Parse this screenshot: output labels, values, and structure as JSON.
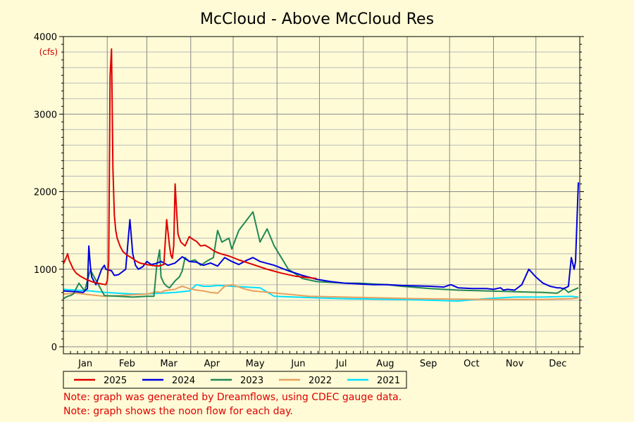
{
  "chart_data": {
    "type": "line",
    "title": "McCloud - Above McCloud Res",
    "ylabel": "(cfs)",
    "xlabel": "",
    "ylim": [
      0,
      4000
    ],
    "yticks": [
      0,
      1000,
      2000,
      3000,
      4000
    ],
    "y_tick_labels": [
      "0",
      "1000",
      "2000",
      "3000",
      "4000"
    ],
    "xlim": [
      1,
      366
    ],
    "x_unit": "day of year",
    "month_labels": [
      "Jan",
      "Feb",
      "Mar",
      "Apr",
      "May",
      "Jun",
      "Jul",
      "Aug",
      "Sep",
      "Oct",
      "Nov",
      "Dec"
    ],
    "grid": true,
    "legend_placement": "bottom",
    "series": [
      {
        "name": "2025",
        "color": "#e00000",
        "x": [
          1,
          3,
          4,
          5,
          8,
          10,
          13,
          17,
          21,
          25,
          28,
          31,
          32,
          33,
          34,
          35,
          36,
          37,
          38,
          39,
          41,
          43,
          46,
          49,
          52,
          55,
          60,
          65,
          68,
          70,
          72,
          74,
          76,
          77,
          78,
          79,
          80,
          81,
          82,
          84,
          87,
          90,
          93,
          95,
          98,
          101,
          104,
          108,
          112,
          118,
          125,
          135,
          145,
          155,
          165,
          175,
          180
        ],
        "values": [
          1070,
          1150,
          1200,
          1120,
          1000,
          950,
          910,
          870,
          840,
          820,
          810,
          800,
          850,
          1100,
          3500,
          3840,
          2300,
          1700,
          1500,
          1400,
          1300,
          1230,
          1180,
          1150,
          1110,
          1080,
          1060,
          1045,
          1040,
          1050,
          1060,
          1640,
          1300,
          1180,
          1140,
          1300,
          2100,
          1750,
          1450,
          1350,
          1300,
          1420,
          1380,
          1360,
          1300,
          1310,
          1280,
          1230,
          1200,
          1170,
          1120,
          1060,
          1000,
          950,
          910,
          890,
          880
        ]
      },
      {
        "name": "2024",
        "color": "#0000dd",
        "x": [
          1,
          10,
          15,
          18,
          19,
          20,
          21,
          24,
          28,
          30,
          31,
          35,
          37,
          40,
          45,
          48,
          50,
          52,
          54,
          57,
          60,
          63,
          66,
          70,
          75,
          80,
          85,
          90,
          95,
          100,
          105,
          110,
          115,
          120,
          125,
          130,
          135,
          140,
          150,
          160,
          170,
          180,
          190,
          200,
          210,
          220,
          230,
          240,
          260,
          270,
          273,
          275,
          280,
          290,
          300,
          305,
          310,
          312,
          315,
          320,
          325,
          330,
          335,
          340,
          345,
          350,
          352,
          354,
          356,
          358,
          360,
          362,
          363,
          365
        ],
        "values": [
          720,
          710,
          700,
          750,
          1300,
          1050,
          900,
          800,
          1000,
          1050,
          1000,
          980,
          920,
          930,
          1000,
          1640,
          1200,
          1050,
          1000,
          1030,
          1100,
          1060,
          1070,
          1100,
          1050,
          1080,
          1160,
          1100,
          1090,
          1050,
          1080,
          1040,
          1150,
          1100,
          1060,
          1110,
          1150,
          1100,
          1050,
          980,
          920,
          870,
          840,
          820,
          810,
          800,
          800,
          790,
          780,
          770,
          790,
          800,
          760,
          750,
          750,
          740,
          760,
          730,
          740,
          730,
          800,
          1000,
          900,
          820,
          780,
          760,
          760,
          750,
          760,
          780,
          1150,
          1000,
          1100,
          2120
        ]
      },
      {
        "name": "2023",
        "color": "#228855",
        "x": [
          1,
          4,
          6,
          8,
          12,
          16,
          20,
          30,
          40,
          50,
          60,
          65,
          67,
          69,
          70,
          72,
          74,
          76,
          80,
          83,
          85,
          87,
          90,
          94,
          98,
          103,
          107,
          110,
          113,
          118,
          120,
          125,
          130,
          135,
          140,
          145,
          150,
          155,
          160,
          170,
          180,
          190,
          200,
          210,
          220,
          230,
          240,
          260,
          280,
          300,
          320,
          340,
          350,
          355,
          358,
          360,
          365
        ],
        "values": [
          620,
          650,
          660,
          680,
          820,
          720,
          990,
          660,
          650,
          640,
          650,
          650,
          1050,
          1250,
          900,
          820,
          780,
          760,
          850,
          900,
          980,
          1150,
          1100,
          1120,
          1050,
          1110,
          1150,
          1500,
          1350,
          1400,
          1260,
          1500,
          1620,
          1740,
          1350,
          1520,
          1300,
          1150,
          1000,
          880,
          840,
          830,
          820,
          820,
          810,
          800,
          780,
          750,
          730,
          720,
          710,
          700,
          690,
          750,
          700,
          720,
          760
        ]
      },
      {
        "name": "2022",
        "color": "#e8a060",
        "x": [
          1,
          10,
          20,
          30,
          40,
          50,
          60,
          63,
          66,
          70,
          72,
          75,
          80,
          82,
          85,
          90,
          95,
          100,
          105,
          110,
          115,
          120,
          125,
          130,
          135,
          175,
          200,
          250,
          300,
          340,
          360,
          365
        ],
        "values": [
          680,
          690,
          670,
          650,
          660,
          670,
          680,
          690,
          710,
          700,
          720,
          730,
          740,
          760,
          780,
          750,
          730,
          720,
          700,
          690,
          780,
          800,
          770,
          740,
          720,
          650,
          640,
          620,
          610,
          610,
          620,
          630
        ]
      },
      {
        "name": "2021",
        "color": "#00e0ff",
        "x": [
          1,
          10,
          20,
          30,
          40,
          50,
          60,
          70,
          80,
          90,
          95,
          100,
          105,
          110,
          120,
          130,
          140,
          150,
          180,
          200,
          240,
          260,
          280,
          300,
          320,
          340,
          360,
          365
        ],
        "values": [
          740,
          730,
          720,
          700,
          690,
          680,
          680,
          690,
          700,
          720,
          800,
          780,
          780,
          790,
          780,
          770,
          760,
          650,
          630,
          620,
          610,
          600,
          590,
          620,
          640,
          640,
          650,
          640
        ]
      }
    ]
  },
  "notes": [
    "Note: graph was generated by Dreamflows, using CDEC gauge data.",
    "Note: graph shows the noon flow for each day."
  ]
}
